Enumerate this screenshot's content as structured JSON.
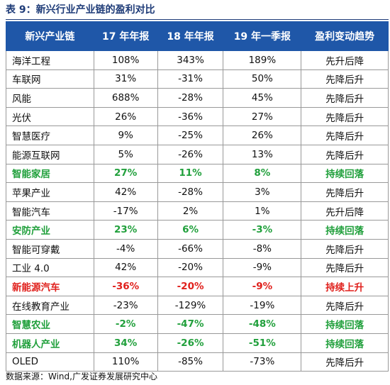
{
  "title": "表 9：新兴行业产业链的盈利对比",
  "table": {
    "header": [
      "新兴产业链",
      "17 年年报",
      "18 年年报",
      "19 年一季报",
      "盈利变动趋势"
    ],
    "header_color": "#1f57a8",
    "rows": [
      {
        "cells": [
          "海洋工程",
          "108%",
          "343%",
          "189%",
          "先升后降"
        ]
      },
      {
        "cells": [
          "车联网",
          "31%",
          "-31%",
          "50%",
          "先降后升"
        ]
      },
      {
        "cells": [
          "风能",
          "688%",
          "-28%",
          "45%",
          "先降后升"
        ]
      },
      {
        "cells": [
          "光伏",
          "26%",
          "-36%",
          "27%",
          "先降后升"
        ]
      },
      {
        "cells": [
          "智慧医疗",
          "9%",
          "-25%",
          "26%",
          "先降后升"
        ]
      },
      {
        "cells": [
          "能源互联网",
          "5%",
          "-26%",
          "13%",
          "先降后升"
        ]
      },
      {
        "cells": [
          "智能家居",
          "27%",
          "11%",
          "8%",
          "持续回落"
        ],
        "color": "#21a03c"
      },
      {
        "cells": [
          "苹果产业",
          "42%",
          "-28%",
          "3%",
          "先降后升"
        ]
      },
      {
        "cells": [
          "智能汽车",
          "-17%",
          "2%",
          "1%",
          "先升后降"
        ]
      },
      {
        "cells": [
          "安防产业",
          "23%",
          "6%",
          "-3%",
          "持续回落"
        ],
        "color": "#21a03c"
      },
      {
        "cells": [
          "智能可穿戴",
          "-4%",
          "-66%",
          "-8%",
          "先降后升"
        ]
      },
      {
        "cells": [
          "工业 4.0",
          "42%",
          "-20%",
          "-9%",
          "先降后升"
        ]
      },
      {
        "cells": [
          "新能源汽车",
          "-36%",
          "-20%",
          "-9%",
          "持续上升"
        ],
        "color": "#e0201c"
      },
      {
        "cells": [
          "在线教育产业",
          "-23%",
          "-129%",
          "-19%",
          "先降后升"
        ]
      },
      {
        "cells": [
          "智慧农业",
          "-2%",
          "-47%",
          "-48%",
          "持续回落"
        ],
        "color": "#21a03c"
      },
      {
        "cells": [
          "机器人产业",
          "34%",
          "-26%",
          "-51%",
          "持续回落"
        ],
        "color": "#21a03c"
      },
      {
        "cells": [
          "OLED",
          "110%",
          "-85%",
          "-73%",
          "先降后升"
        ]
      }
    ]
  },
  "source": "数据来源：Wind,广发证券发展研究中心"
}
